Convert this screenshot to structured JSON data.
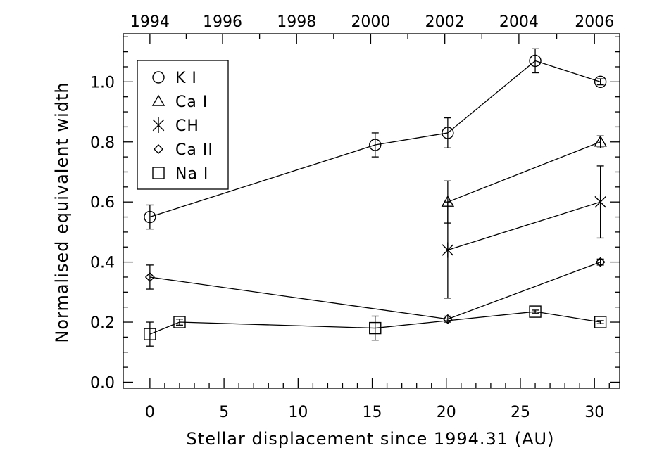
{
  "chart_data": {
    "type": "line",
    "xlabel": "Stellar displacement since 1994.31 (AU)",
    "ylabel": "Normalised equivalent width",
    "xlim": [
      -1.8,
      31.7
    ],
    "ylim": [
      -0.02,
      1.16
    ],
    "x_ticks": [
      0,
      5,
      10,
      15,
      20,
      25,
      30
    ],
    "y_ticks": [
      0.0,
      0.2,
      0.4,
      0.6,
      0.8,
      1.0
    ],
    "y_tick_labels": [
      "0.0",
      "0.2",
      "0.4",
      "0.6",
      "0.8",
      "1.0"
    ],
    "top_axis": {
      "labels": [
        "1994",
        "1996",
        "1998",
        "2000",
        "2002",
        "2004",
        "2006"
      ],
      "positions_in_x_units": [
        0,
        4.9,
        9.9,
        14.9,
        19.9,
        24.9,
        30.0
      ]
    },
    "legend": {
      "position": "top-left"
    },
    "grid": false,
    "series": [
      {
        "name": "K I",
        "marker": "circle",
        "markersize": 16,
        "x": [
          0,
          15.2,
          20.1,
          26.0,
          30.4
        ],
        "y": [
          0.55,
          0.79,
          0.83,
          1.07,
          1.0
        ],
        "yerr": [
          0.04,
          0.04,
          0.05,
          0.04,
          0.01
        ]
      },
      {
        "name": "Ca I",
        "marker": "triangle",
        "markersize": 16,
        "x": [
          20.1,
          30.4
        ],
        "y": [
          0.6,
          0.8
        ],
        "yerr": [
          0.07,
          0.02
        ]
      },
      {
        "name": "CH",
        "marker": "asterisk",
        "markersize": 22,
        "x": [
          20.1,
          30.4
        ],
        "y": [
          0.44,
          0.6
        ],
        "yerr": [
          0.16,
          0.12
        ]
      },
      {
        "name": "Ca II",
        "marker": "diamond",
        "markersize": 12,
        "x": [
          0,
          20.1,
          30.4
        ],
        "y": [
          0.35,
          0.21,
          0.4
        ],
        "yerr": [
          0.04,
          0.01,
          0.01
        ]
      },
      {
        "name": "Na I",
        "marker": "square",
        "markersize": 16,
        "x": [
          0,
          2.0,
          15.2,
          26.0,
          30.4
        ],
        "y": [
          0.16,
          0.2,
          0.18,
          0.235,
          0.2
        ],
        "yerr": [
          0.04,
          0.01,
          0.04,
          0.005,
          0.005
        ]
      }
    ]
  }
}
